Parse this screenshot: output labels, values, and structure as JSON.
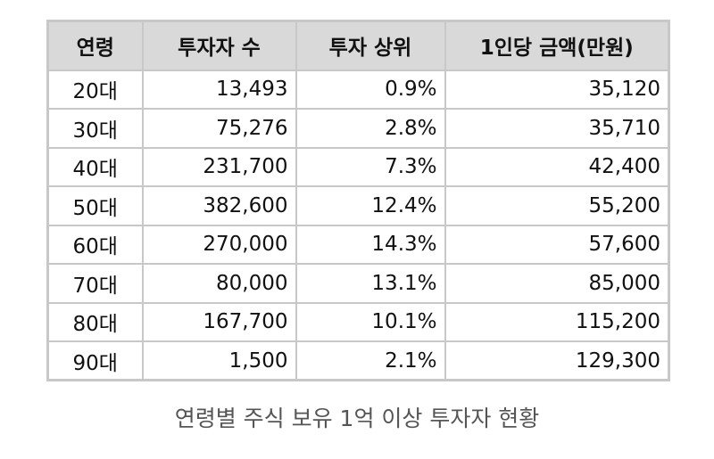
{
  "table": {
    "header": [
      "연령",
      "투자자 수",
      "투자 상위",
      "1인당 금액(만원)"
    ],
    "rows": [
      [
        "20대",
        "13,493",
        "0.9%",
        "35,120"
      ],
      [
        "30대",
        "75,276",
        "2.8%",
        "35,710"
      ],
      [
        "40대",
        "231,700",
        "7.3%",
        "42,400"
      ],
      [
        "50대",
        "382,600",
        "12.4%",
        "55,200"
      ],
      [
        "60대",
        "270,000",
        "14.3%",
        "57,600"
      ],
      [
        "70대",
        "80,000",
        "13.1%",
        "85,000"
      ],
      [
        "80대",
        "167,700",
        "10.1%",
        "115,200"
      ],
      [
        "90대",
        "1,500",
        "2.1%",
        "129,300"
      ]
    ]
  },
  "caption": "연령별 주식 보유 1억 이상 투자자 현황"
}
